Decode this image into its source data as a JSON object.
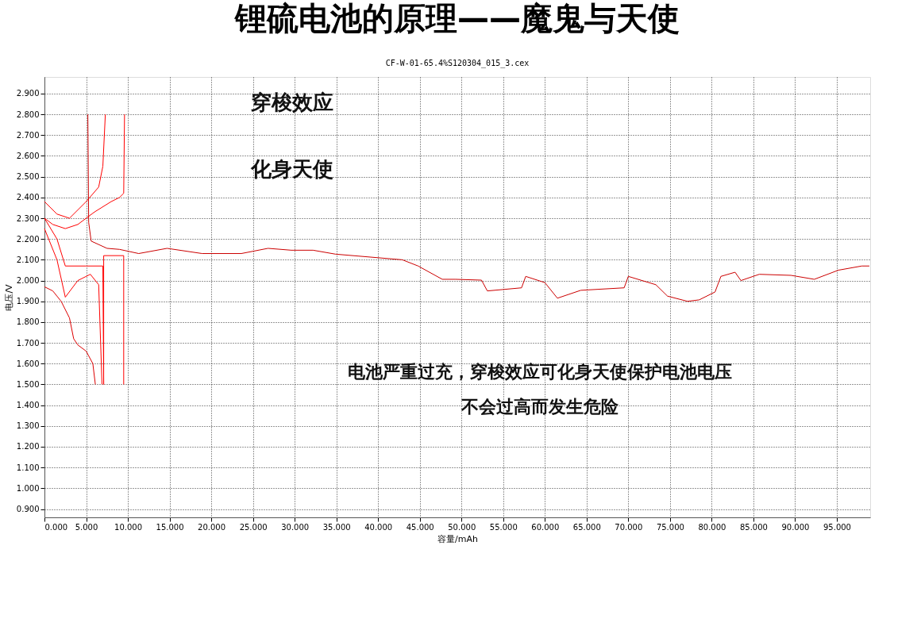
{
  "chart_data": {
    "type": "line",
    "title": "锂硫电池的原理——魔鬼与天使",
    "subtitle": "CF-W-01-65.4%S120304_015_3.cex",
    "xlabel": "容量/mAh",
    "ylabel": "电压/V",
    "xlim": [
      0,
      99
    ],
    "ylim": [
      0.86,
      2.98
    ],
    "xticks": [
      {
        "value": 0,
        "label": "0.000"
      },
      {
        "value": 5,
        "label": "5.000"
      },
      {
        "value": 10,
        "label": "10.000"
      },
      {
        "value": 15,
        "label": "15.000"
      },
      {
        "value": 20,
        "label": "20.000"
      },
      {
        "value": 25,
        "label": "25.000"
      },
      {
        "value": 30,
        "label": "30.000"
      },
      {
        "value": 35,
        "label": "35.000"
      },
      {
        "value": 40,
        "label": "40.000"
      },
      {
        "value": 45,
        "label": "45.000"
      },
      {
        "value": 50,
        "label": "50.000"
      },
      {
        "value": 55,
        "label": "55.000"
      },
      {
        "value": 60,
        "label": "60.000"
      },
      {
        "value": 65,
        "label": "65.000"
      },
      {
        "value": 70,
        "label": "70.000"
      },
      {
        "value": 75,
        "label": "75.000"
      },
      {
        "value": 80,
        "label": "80.000"
      },
      {
        "value": 85,
        "label": "85.000"
      },
      {
        "value": 90,
        "label": "90.000"
      },
      {
        "value": 95,
        "label": "95.000"
      }
    ],
    "yticks": [
      {
        "value": 0.9,
        "label": "0.900"
      },
      {
        "value": 1.0,
        "label": "1.000"
      },
      {
        "value": 1.1,
        "label": "1.100"
      },
      {
        "value": 1.2,
        "label": "1.200"
      },
      {
        "value": 1.3,
        "label": "1.300"
      },
      {
        "value": 1.4,
        "label": "1.400"
      },
      {
        "value": 1.5,
        "label": "1.500"
      },
      {
        "value": 1.6,
        "label": "1.600"
      },
      {
        "value": 1.7,
        "label": "1.700"
      },
      {
        "value": 1.8,
        "label": "1.800"
      },
      {
        "value": 1.9,
        "label": "1.900"
      },
      {
        "value": 2.0,
        "label": "2.000"
      },
      {
        "value": 2.1,
        "label": "2.100"
      },
      {
        "value": 2.2,
        "label": "2.200"
      },
      {
        "value": 2.3,
        "label": "2.300"
      },
      {
        "value": 2.4,
        "label": "2.400"
      },
      {
        "value": 2.5,
        "label": "2.500"
      },
      {
        "value": 2.6,
        "label": "2.600"
      },
      {
        "value": 2.7,
        "label": "2.700"
      },
      {
        "value": 2.8,
        "label": "2.800"
      },
      {
        "value": 2.9,
        "label": "2.900"
      }
    ],
    "grid": true,
    "legend": false,
    "marker": "none",
    "line_style": "solid",
    "series": [
      {
        "color": "#ff0000",
        "x": [
          0,
          1,
          2.5,
          4,
          6,
          8,
          9,
          9.5,
          9.6
        ],
        "values": [
          2.3,
          2.27,
          2.25,
          2.27,
          2.33,
          2.38,
          2.4,
          2.42,
          2.8
        ]
      },
      {
        "color": "#ff0000",
        "x": [
          0,
          1.5,
          3,
          5,
          6.5,
          7,
          7.3
        ],
        "values": [
          2.38,
          2.32,
          2.3,
          2.38,
          2.45,
          2.55,
          2.8
        ]
      },
      {
        "color": "#ff0000",
        "x": [
          0,
          1.5,
          2.5,
          5,
          7,
          7.1,
          7.1,
          9.5,
          9.5
        ],
        "values": [
          2.3,
          2.2,
          2.07,
          2.07,
          2.07,
          1.5,
          2.12,
          2.12,
          1.5
        ]
      },
      {
        "color": "#ff0000",
        "x": [
          0,
          1.5,
          2.5,
          4,
          5.5,
          6.5,
          6.9
        ],
        "values": [
          2.25,
          2.1,
          1.92,
          2.0,
          2.03,
          1.98,
          1.5
        ]
      },
      {
        "color": "#dd0000",
        "x": [
          0,
          1,
          2,
          3,
          3.5,
          4,
          5,
          5.8,
          6.1
        ],
        "values": [
          1.97,
          1.95,
          1.9,
          1.82,
          1.72,
          1.69,
          1.66,
          1.6,
          1.5
        ]
      },
      {
        "color": "#cc0000",
        "x": [
          5.2,
          5.3,
          5.6,
          7.5,
          9,
          11.3,
          14.7,
          18.9,
          23.6,
          26.8,
          29.6,
          32.2,
          34.9,
          42.9,
          44.8,
          47.7,
          49.3,
          52.4,
          53.1,
          57.2,
          57.7,
          60,
          61.5,
          64.3,
          69.5,
          70,
          73.3,
          74.7,
          77.1,
          78.5,
          80.4,
          81.1,
          82.8,
          83.5,
          85.7,
          89.5,
          92.3,
          95.2,
          98,
          98.9
        ],
        "values": [
          2.8,
          2.28,
          2.19,
          2.155,
          2.15,
          2.13,
          2.155,
          2.13,
          2.13,
          2.155,
          2.146,
          2.146,
          2.127,
          2.1,
          2.07,
          2.006,
          2.006,
          2.002,
          1.95,
          1.965,
          2.02,
          1.99,
          1.915,
          1.953,
          1.965,
          2.02,
          1.98,
          1.925,
          1.9,
          1.907,
          1.945,
          2.02,
          2.04,
          2.0,
          2.03,
          2.025,
          2.006,
          2.05,
          2.07,
          2.07
        ]
      }
    ],
    "annotations": [
      "穿梭效应",
      "化身天使",
      "电池严重过充，穿梭效应可化身天使保护电池电压",
      "不会过高而发生危险"
    ]
  }
}
